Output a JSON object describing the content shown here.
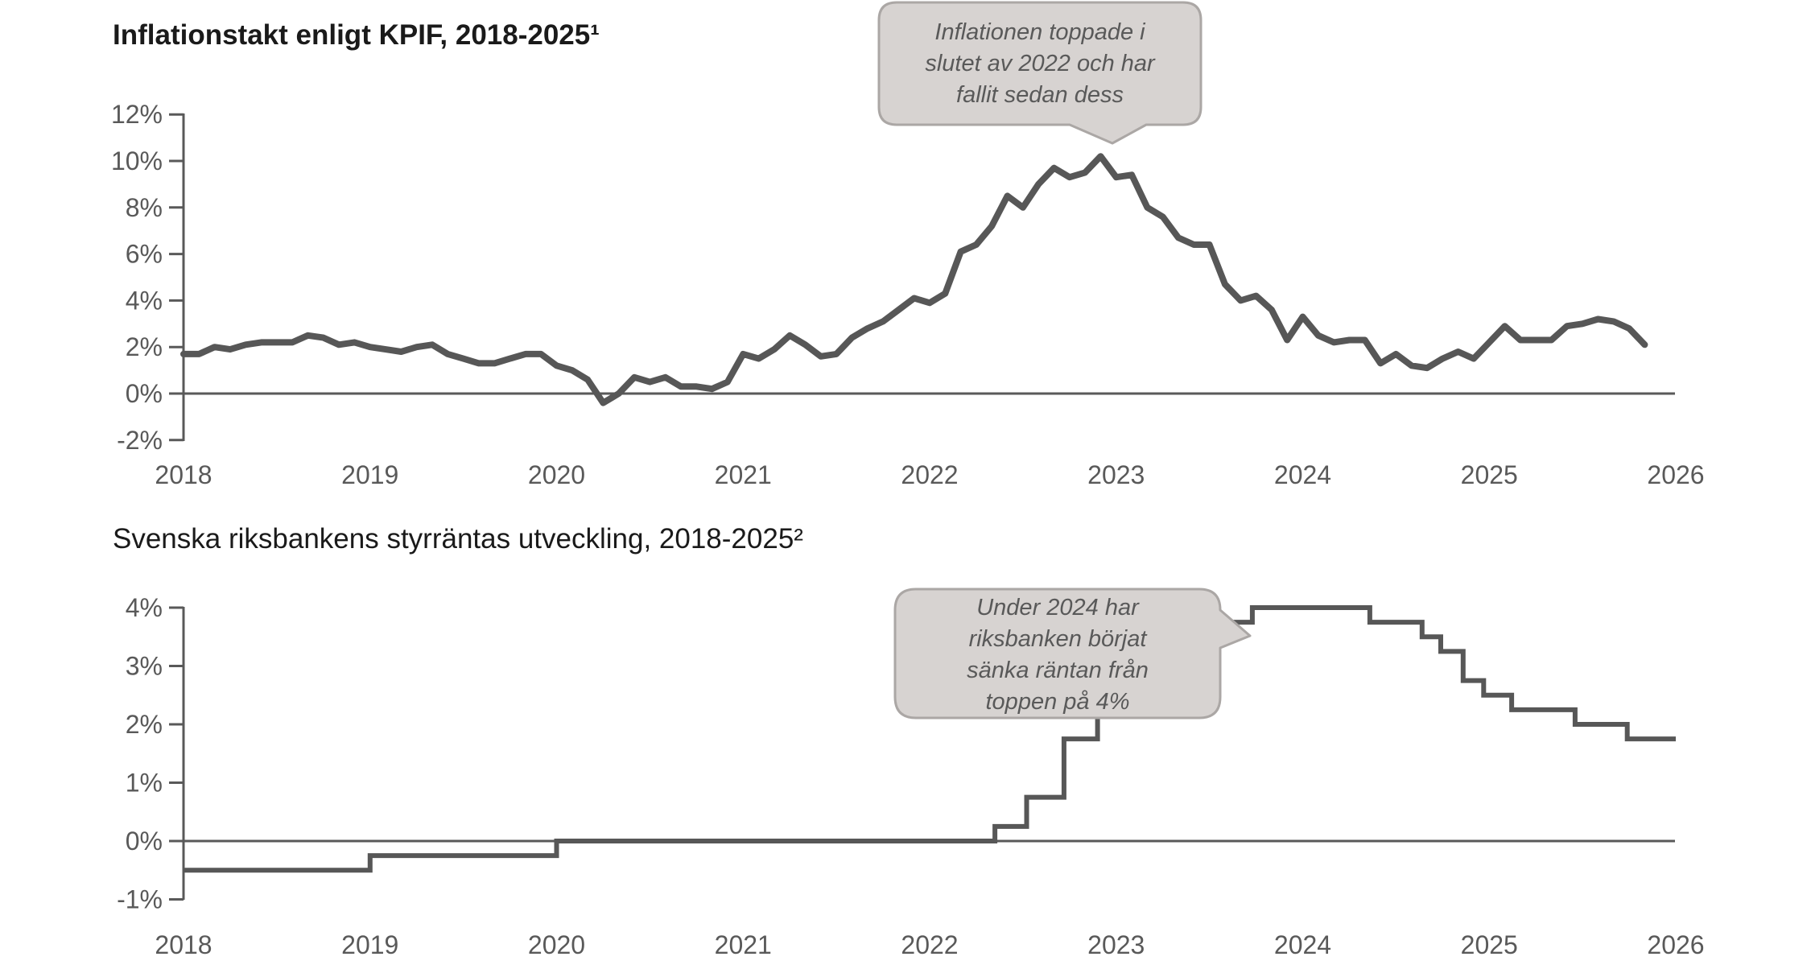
{
  "colors": {
    "line": "#575757",
    "axis": "#595959",
    "zero_line": "#595959",
    "tick_text": "#595959",
    "title_text": "#1a1a1a",
    "callout_fill": "#d7d3d1",
    "callout_border": "#aba7a5",
    "callout_text": "#595959"
  },
  "chart_data": [
    {
      "type": "line",
      "title": "Inflationstakt enligt KPIF, 2018-2025¹",
      "xlabel": "",
      "ylabel": "",
      "xlim": [
        2018,
        2026
      ],
      "ylim": [
        -2,
        12
      ],
      "grid": "zero-line-only",
      "x_ticks": [
        {
          "v": 2018,
          "label": "2018"
        },
        {
          "v": 2019,
          "label": "2019"
        },
        {
          "v": 2020,
          "label": "2020"
        },
        {
          "v": 2021,
          "label": "2021"
        },
        {
          "v": 2022,
          "label": "2022"
        },
        {
          "v": 2023,
          "label": "2023"
        },
        {
          "v": 2024,
          "label": "2024"
        },
        {
          "v": 2025,
          "label": "2025"
        },
        {
          "v": 2026,
          "label": "2026"
        }
      ],
      "y_ticks": [
        {
          "v": 12,
          "label": "12%"
        },
        {
          "v": 10,
          "label": "10%"
        },
        {
          "v": 8,
          "label": "8%"
        },
        {
          "v": 6,
          "label": "6%"
        },
        {
          "v": 4,
          "label": "4%"
        },
        {
          "v": 2,
          "label": "2%"
        },
        {
          "v": 0,
          "label": "0%"
        },
        {
          "v": -2,
          "label": "-2%"
        }
      ],
      "series": [
        {
          "name": "KPIF inflationstakt",
          "freq": "monthly",
          "start": "2018-01",
          "values": [
            1.7,
            1.7,
            2.0,
            1.9,
            2.1,
            2.2,
            2.2,
            2.2,
            2.5,
            2.4,
            2.1,
            2.2,
            2.0,
            1.9,
            1.8,
            2.0,
            2.1,
            1.7,
            1.5,
            1.3,
            1.3,
            1.5,
            1.7,
            1.7,
            1.2,
            1.0,
            0.6,
            -0.4,
            0.0,
            0.7,
            0.5,
            0.7,
            0.3,
            0.3,
            0.2,
            0.5,
            1.7,
            1.5,
            1.9,
            2.5,
            2.1,
            1.6,
            1.7,
            2.4,
            2.8,
            3.1,
            3.6,
            4.1,
            3.9,
            4.3,
            6.1,
            6.4,
            7.2,
            8.5,
            8.0,
            9.0,
            9.7,
            9.3,
            9.5,
            10.2,
            9.3,
            9.4,
            8.0,
            7.6,
            6.7,
            6.4,
            6.4,
            4.7,
            4.0,
            4.2,
            3.6,
            2.3,
            3.3,
            2.5,
            2.2,
            2.3,
            2.3,
            1.3,
            1.7,
            1.2,
            1.1,
            1.5,
            1.8,
            1.5,
            2.2,
            2.9,
            2.3,
            2.3,
            2.3,
            2.9,
            3.0,
            3.2,
            3.1,
            2.8,
            2.1
          ]
        }
      ],
      "annotation": {
        "text": "Inflationen toppade i\nslutet av 2022 och har\nfallit sedan dess"
      }
    },
    {
      "type": "step",
      "title": "Svenska riksbankens styrräntas utveckling, 2018-2025²",
      "xlabel": "",
      "ylabel": "",
      "xlim": [
        2018,
        2026
      ],
      "ylim": [
        -1,
        4
      ],
      "grid": "zero-line-only",
      "x_ticks": [
        {
          "v": 2018,
          "label": "2018"
        },
        {
          "v": 2019,
          "label": "2019"
        },
        {
          "v": 2020,
          "label": "2020"
        },
        {
          "v": 2021,
          "label": "2021"
        },
        {
          "v": 2022,
          "label": "2022"
        },
        {
          "v": 2023,
          "label": "2023"
        },
        {
          "v": 2024,
          "label": "2024"
        },
        {
          "v": 2025,
          "label": "2025"
        },
        {
          "v": 2026,
          "label": "2026"
        }
      ],
      "y_ticks": [
        {
          "v": 4,
          "label": "4%"
        },
        {
          "v": 3,
          "label": "3%"
        },
        {
          "v": 2,
          "label": "2%"
        },
        {
          "v": 1,
          "label": "1%"
        },
        {
          "v": 0,
          "label": "0%"
        },
        {
          "v": -1,
          "label": "-1%"
        }
      ],
      "series": [
        {
          "name": "Styrränta",
          "steps": [
            {
              "x": 2018.0,
              "y": -0.5
            },
            {
              "x": 2019.0,
              "y": -0.25
            },
            {
              "x": 2020.0,
              "y": 0.0
            },
            {
              "x": 2022.35,
              "y": 0.25
            },
            {
              "x": 2022.52,
              "y": 0.75
            },
            {
              "x": 2022.72,
              "y": 1.75
            },
            {
              "x": 2022.9,
              "y": 2.5
            },
            {
              "x": 2023.12,
              "y": 3.0
            },
            {
              "x": 2023.34,
              "y": 3.5
            },
            {
              "x": 2023.52,
              "y": 3.75
            },
            {
              "x": 2023.73,
              "y": 4.0
            },
            {
              "x": 2024.36,
              "y": 3.75
            },
            {
              "x": 2024.64,
              "y": 3.5
            },
            {
              "x": 2024.74,
              "y": 3.25
            },
            {
              "x": 2024.86,
              "y": 2.75
            },
            {
              "x": 2024.97,
              "y": 2.5
            },
            {
              "x": 2025.12,
              "y": 2.25
            },
            {
              "x": 2025.46,
              "y": 2.0
            },
            {
              "x": 2025.74,
              "y": 1.75
            },
            {
              "x": 2026.0,
              "y": 1.75
            }
          ]
        }
      ],
      "annotation": {
        "text": "Under 2024 har\nriksbanken börjat\nsänka räntan från\ntoppen på 4%"
      }
    }
  ]
}
